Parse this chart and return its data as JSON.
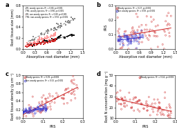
{
  "panel_a": {
    "title": "a",
    "xlabel": "Absorptive root diameter (mm)",
    "ylabel": "Root tissue size (mm)",
    "xlim": [
      0.0,
      1.5
    ],
    "ylim": [
      0.0,
      0.8
    ],
    "xticks": [
      0.0,
      0.3,
      0.6,
      0.9,
      1.2,
      1.5
    ],
    "yticks": [
      0.0,
      0.2,
      0.4,
      0.6,
      0.8
    ],
    "legend": [
      "OR, woody species, R² = 0.80, p<0.001",
      "TRS, woody species, R² = 0.98, p<0.001",
      "OR, non-woody species, R² = 0.80, p<0.001",
      "TRS, non-woody species, R² = 0.93, p<0.001"
    ],
    "colors": [
      "#111111",
      "#888888",
      "#cc2222",
      "#ff9999"
    ],
    "marker": "s"
  },
  "panel_b": {
    "title": "b",
    "xlabel": "Absorptive root diameter (mm)",
    "ylabel": "PRS",
    "xlim": [
      0.0,
      1.5
    ],
    "ylim": [
      0.0,
      0.3
    ],
    "xticks": [
      0.0,
      0.3,
      0.6,
      0.9,
      1.2,
      1.5
    ],
    "yticks": [
      0.0,
      0.1,
      0.2,
      0.3
    ],
    "legend": [
      "Woody species, R² = 0.27, p<0.001",
      "Non-woody species, R² = 0.09, p<0.001"
    ],
    "colors": [
      "#cc2222",
      "#3333cc"
    ],
    "marker": "o"
  },
  "panel_c": {
    "title": "c",
    "xlabel": "PRS",
    "ylabel": "Root tissue density (g cm⁻³)",
    "xlim": [
      0.0,
      0.3
    ],
    "ylim": [
      0.0,
      1.0
    ],
    "xticks": [
      0.0,
      0.1,
      0.2,
      0.3
    ],
    "yticks": [
      0.0,
      0.2,
      0.4,
      0.6,
      0.8,
      1.0
    ],
    "legend": [
      "Woody species, R² = 0.19, p<0.001",
      "Non-woody species, R² = 0.53, p<0.001"
    ],
    "colors": [
      "#cc2222",
      "#3333cc"
    ],
    "marker": "o"
  },
  "panel_d": {
    "title": "d",
    "xlabel": "PRS",
    "ylabel": "Root N concentration (mg g⁻¹)",
    "xlim": [
      0.0,
      0.3
    ],
    "ylim": [
      10.0,
      50.0
    ],
    "xticks": [
      0.0,
      0.1,
      0.2,
      0.3
    ],
    "yticks": [
      10,
      20,
      30,
      40,
      50
    ],
    "legend": [
      "Woody species, R² = 0.14, p<0.001"
    ],
    "colors": [
      "#cc2222"
    ],
    "marker": "o"
  }
}
